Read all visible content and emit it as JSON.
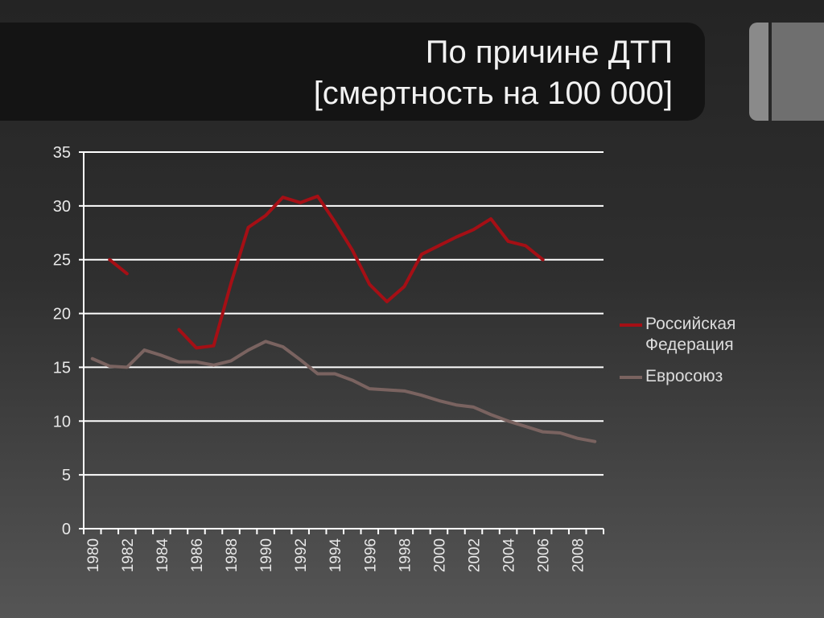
{
  "title": {
    "line1": "По причине ДТП",
    "line2": "[смертность на 100 000]"
  },
  "chart_data": {
    "type": "line",
    "ylim": [
      0,
      35
    ],
    "yticks": [
      "0",
      "5",
      "10",
      "15",
      "20",
      "25",
      "30",
      "35"
    ],
    "x": [
      1980,
      1981,
      1982,
      1983,
      1984,
      1985,
      1986,
      1987,
      1988,
      1989,
      1990,
      1991,
      1992,
      1993,
      1994,
      1995,
      1996,
      1997,
      1998,
      1999,
      2000,
      2001,
      2002,
      2003,
      2004,
      2005,
      2006,
      2007,
      2008,
      2009
    ],
    "xtick_labels": [
      "1980",
      "1982",
      "1984",
      "1986",
      "1988",
      "1990",
      "1992",
      "1994",
      "1996",
      "1998",
      "2000",
      "2002",
      "2004",
      "2006",
      "2008"
    ],
    "grid": true,
    "legend_position": "right",
    "series": [
      {
        "name": "Российская Федерация",
        "color": "#a50f15",
        "values": [
          null,
          25.0,
          23.7,
          null,
          null,
          18.5,
          16.8,
          17.0,
          22.8,
          28.0,
          29.1,
          30.8,
          30.3,
          30.9,
          28.5,
          25.9,
          22.7,
          21.1,
          22.5,
          25.5,
          26.3,
          27.1,
          27.8,
          28.8,
          26.7,
          26.3,
          25.0,
          null,
          null,
          null
        ]
      },
      {
        "name": "Евросоюз",
        "color": "#7a6360",
        "values": [
          15.8,
          15.1,
          15.0,
          16.6,
          16.1,
          15.5,
          15.5,
          15.2,
          15.6,
          16.6,
          17.4,
          16.9,
          15.7,
          14.4,
          14.4,
          13.8,
          13.0,
          12.9,
          12.8,
          12.4,
          11.9,
          11.5,
          11.3,
          10.6,
          10.0,
          9.5,
          9.0,
          8.9,
          8.4,
          8.1
        ]
      }
    ]
  }
}
